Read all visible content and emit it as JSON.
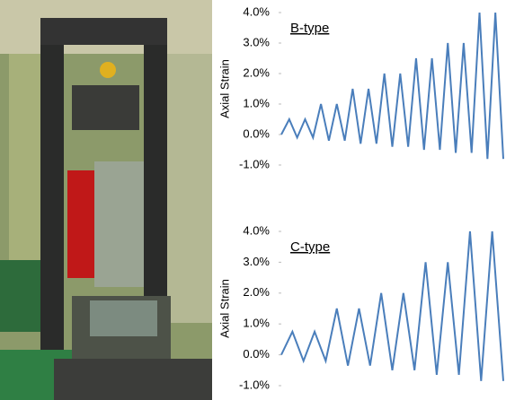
{
  "chart_data": [
    {
      "type": "line",
      "title": "B-type",
      "y_label": "Axial Strain",
      "color": "#4a7ebb",
      "categories": [
        null,
        null,
        null,
        null,
        null,
        null,
        null,
        null,
        null,
        null,
        null,
        null,
        null,
        null,
        null,
        null,
        null,
        null,
        null,
        null,
        null,
        null,
        null,
        null,
        null,
        null,
        null,
        null,
        null
      ],
      "values": [
        0,
        0.5,
        -0.1,
        0.5,
        -0.1,
        1.0,
        -0.2,
        1.0,
        -0.2,
        1.5,
        -0.3,
        1.5,
        -0.3,
        2.0,
        -0.4,
        2.0,
        -0.4,
        2.5,
        -0.5,
        2.5,
        -0.5,
        3.0,
        -0.6,
        3.0,
        -0.6,
        4.0,
        -0.8,
        4.0,
        -0.8
      ],
      "ylim": [
        -1,
        4
      ],
      "yticks": [
        {
          "value": -1,
          "label": "-1.0%"
        },
        {
          "value": 0,
          "label": "0.0%"
        },
        {
          "value": 1,
          "label": "1.0%"
        },
        {
          "value": 2,
          "label": "2.0%"
        },
        {
          "value": 3,
          "label": "3.0%"
        },
        {
          "value": 4,
          "label": "4.0%"
        }
      ]
    },
    {
      "type": "line",
      "title": "C-type",
      "y_label": "Axial Strain",
      "color": "#4a7ebb",
      "categories": [
        null,
        null,
        null,
        null,
        null,
        null,
        null,
        null,
        null,
        null,
        null,
        null,
        null,
        null,
        null,
        null,
        null,
        null,
        null,
        null,
        null
      ],
      "values": [
        0,
        0.75,
        -0.2,
        0.75,
        -0.2,
        1.5,
        -0.35,
        1.5,
        -0.35,
        2.0,
        -0.5,
        2.0,
        -0.5,
        3.0,
        -0.65,
        3.0,
        -0.65,
        4.0,
        -0.85,
        4.0,
        -0.85
      ],
      "ylim": [
        -1,
        4
      ],
      "yticks": [
        {
          "value": -1,
          "label": "-1.0%"
        },
        {
          "value": 0,
          "label": "0.0%"
        },
        {
          "value": 1,
          "label": "1.0%"
        },
        {
          "value": 2,
          "label": "2.0%"
        },
        {
          "value": 3,
          "label": "3.0%"
        },
        {
          "value": 4,
          "label": "4.0%"
        }
      ]
    }
  ]
}
